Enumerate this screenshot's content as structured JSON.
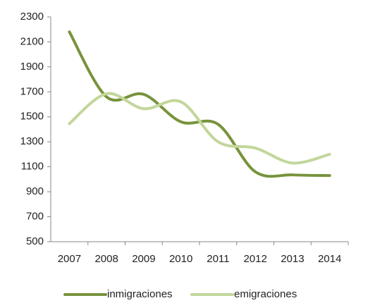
{
  "chart_data": {
    "type": "line",
    "categories": [
      "2007",
      "2008",
      "2009",
      "2010",
      "2011",
      "2012",
      "2013",
      "2014"
    ],
    "series": [
      {
        "name": "inmigraciones",
        "color": "#77933c",
        "values": [
          2180,
          1660,
          1680,
          1460,
          1440,
          1060,
          1035,
          1030
        ]
      },
      {
        "name": "emigraciones",
        "color": "#c3d69b",
        "values": [
          1445,
          1685,
          1565,
          1620,
          1300,
          1250,
          1130,
          1200
        ]
      }
    ],
    "ylim": [
      500,
      2300
    ],
    "yticks": [
      500,
      700,
      900,
      1100,
      1300,
      1500,
      1700,
      1900,
      2100,
      2300
    ],
    "grid": false,
    "legend": "bottom",
    "smooth": true
  }
}
